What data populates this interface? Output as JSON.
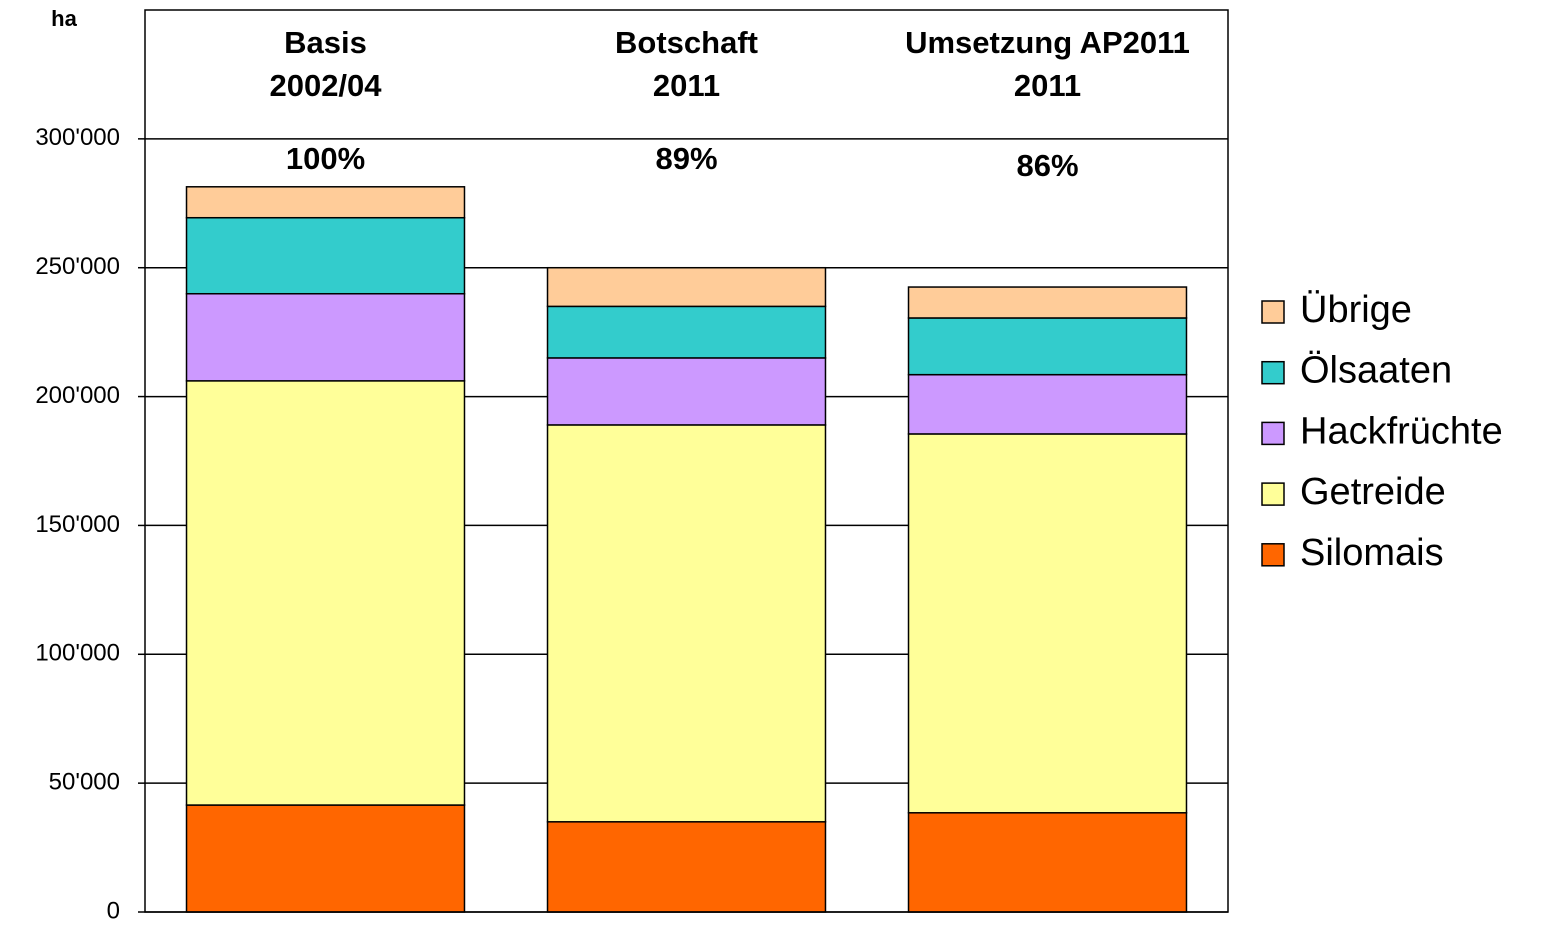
{
  "chart_data": {
    "type": "stacked_bar",
    "y_label": "ha",
    "categories": [
      [
        "Basis",
        "2002/04"
      ],
      [
        "Botschaft",
        "2011"
      ],
      [
        "Umsetzung AP2011",
        "2011"
      ]
    ],
    "annotations": [
      "100%",
      "89%",
      "86%"
    ],
    "series": [
      {
        "name": "Silomais",
        "color": "#ff6600",
        "values": [
          41500,
          35000,
          38500
        ]
      },
      {
        "name": "Getreide",
        "color": "#ffff99",
        "values": [
          164600,
          154000,
          147000
        ]
      },
      {
        "name": "Hackfrüchte",
        "color": "#cc99ff",
        "values": [
          33800,
          26000,
          23000
        ]
      },
      {
        "name": "Ölsaaten",
        "color": "#33cccc",
        "values": [
          29500,
          20000,
          22000
        ]
      },
      {
        "name": "Übrige",
        "color": "#ffcc99",
        "values": [
          12000,
          15000,
          12000
        ]
      }
    ],
    "ylim": [
      0,
      350000
    ],
    "yticks": [
      0,
      {
        "value": 50000,
        "label": "50'000"
      },
      {
        "value": 100000,
        "label": "100'000"
      },
      {
        "value": 150000,
        "label": "150'000"
      },
      {
        "value": 200000,
        "label": "200'000"
      },
      {
        "value": 250000,
        "label": "250'000"
      },
      {
        "value": 300000,
        "label": "300'000"
      }
    ],
    "grid": true,
    "legend": "right"
  }
}
